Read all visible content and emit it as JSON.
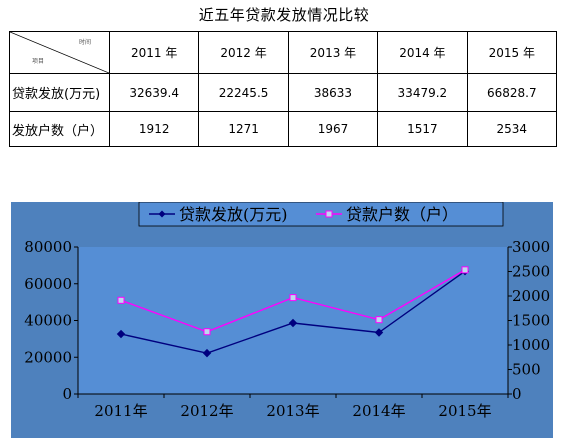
{
  "page_title": "近五年贷款发放情况比较",
  "table": {
    "corner_top": "时间",
    "corner_bottom": "项目",
    "years": [
      "2011 年",
      "2012 年",
      "2013 年",
      "2014 年",
      "2015 年"
    ],
    "rows": [
      {
        "label": "贷款发放(万元)",
        "values": [
          "32639.4",
          "22245.5",
          "38633",
          "33479.2",
          "66828.7"
        ]
      },
      {
        "label": "发放户数（户）",
        "values": [
          "1912",
          "1271",
          "1967",
          "1517",
          "2534"
        ]
      }
    ]
  },
  "chart_data": {
    "type": "line",
    "categories": [
      "2011年",
      "2012年",
      "2013年",
      "2014年",
      "2015年"
    ],
    "series": [
      {
        "name": "贷款发放(万元)",
        "axis": "left",
        "color": "#00007f",
        "marker": "diamond",
        "values": [
          32639.4,
          22245.5,
          38633,
          33479.2,
          66828.7
        ]
      },
      {
        "name": "贷款户数（户）",
        "axis": "right",
        "color": "#ff00ff",
        "marker": "square",
        "values": [
          1912,
          1271,
          1967,
          1517,
          2534
        ]
      }
    ],
    "ylim_left": [
      0,
      80000
    ],
    "yticks_left": [
      0,
      20000,
      40000,
      60000,
      80000
    ],
    "ylim_right": [
      0,
      3000
    ],
    "yticks_right": [
      0,
      500,
      1000,
      1500,
      2000,
      2500,
      3000
    ],
    "legend": "top",
    "grid": false,
    "background_color": "#4e81bd",
    "plot_color": "#558ed5"
  }
}
